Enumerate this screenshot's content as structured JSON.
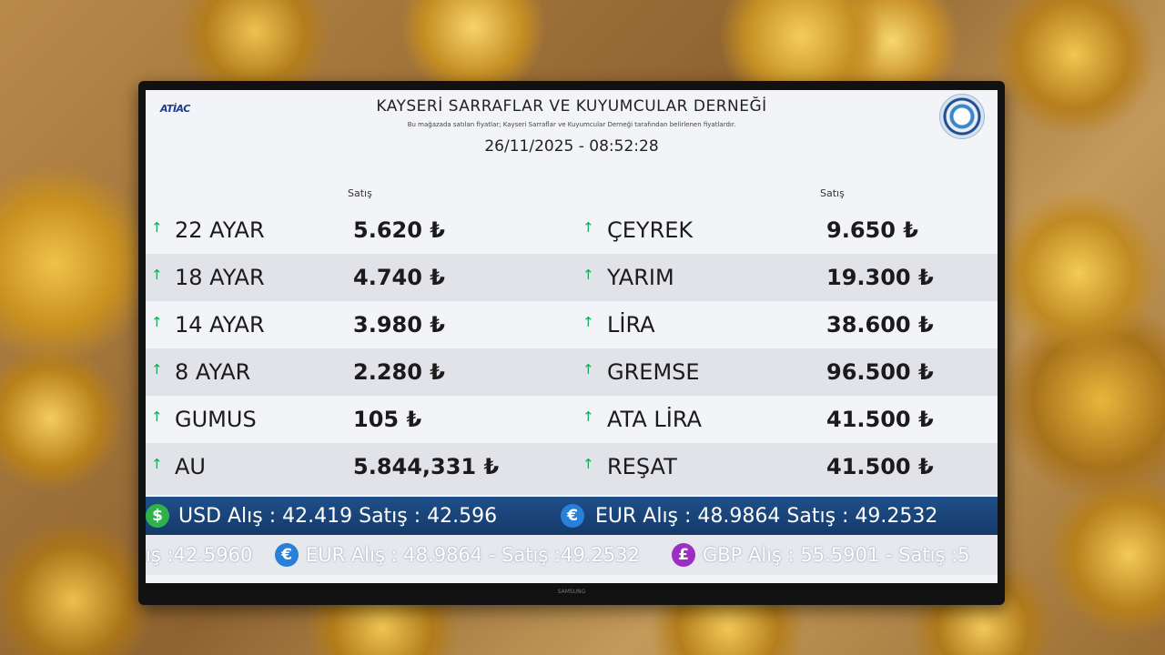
{
  "header": {
    "brand": "ATİAC",
    "title": "KAYSERİ SARRAFLAR VE KUYUMCULAR DERNEĞİ",
    "subtitle": "Bu mağazada satılan fiyatlar; Kayseri Sarraflar ve Kuyumcular Derneği tarafından belirlenen fiyatlardır.",
    "datetime": "26/11/2025 - 08:52:28"
  },
  "columns": {
    "left_head": "Satış",
    "right_head": "Satış"
  },
  "left_rows": [
    {
      "name": "22 AYAR",
      "price": "5.620 ₺",
      "arrow": "↑"
    },
    {
      "name": "18 AYAR",
      "price": "4.740 ₺",
      "arrow": "↑"
    },
    {
      "name": "14 AYAR",
      "price": "3.980 ₺",
      "arrow": "↑"
    },
    {
      "name": "8 AYAR",
      "price": "2.280 ₺",
      "arrow": "↑"
    },
    {
      "name": "GUMUS",
      "price": "105 ₺",
      "arrow": "↑"
    },
    {
      "name": "AU",
      "price": "5.844,331 ₺",
      "arrow": "↑"
    }
  ],
  "right_rows": [
    {
      "name": "ÇEYREK",
      "price": "9.650 ₺",
      "arrow": "↑"
    },
    {
      "name": "YARIM",
      "price": "19.300 ₺",
      "arrow": "↑"
    },
    {
      "name": "LİRA",
      "price": "38.600 ₺",
      "arrow": "↑"
    },
    {
      "name": "GREMSE",
      "price": "96.500 ₺",
      "arrow": "↑"
    },
    {
      "name": "ATA LİRA",
      "price": "41.500 ₺",
      "arrow": "↑"
    },
    {
      "name": "REŞAT",
      "price": "41.500 ₺",
      "arrow": "↑"
    }
  ],
  "fx": {
    "usd_symbol": "$",
    "usd_text": "USD  Alış :  42.419     Satış :  42.596",
    "eur_symbol": "€",
    "eur_text": "EUR  Alış :  48.9864     Satış :  49.2532"
  },
  "ticker": {
    "part1": "ış :42.5960",
    "eur_symbol": "€",
    "part2": "EUR Alış : 48.9864 - Satış :49.2532",
    "gbp_symbol": "£",
    "part3": "GBP Alış : 55.5901 - Satış :5"
  },
  "stand": {
    "label": "SAMSUNG"
  },
  "colors": {
    "arrow_up": "#1ea45b",
    "fx_bar": "#1f4f8a",
    "usd_coin": "#2fb24c",
    "eur_coin": "#2a7fd6",
    "gbp_coin": "#9b2fc4"
  }
}
